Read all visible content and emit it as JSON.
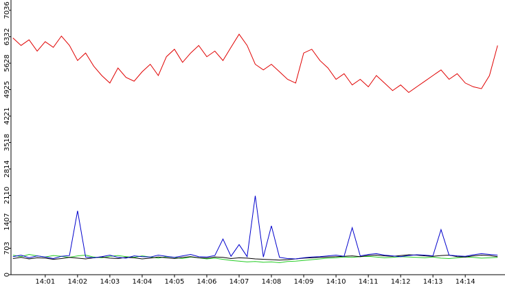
{
  "chart_data": {
    "type": "line",
    "x": [
      0,
      0.25,
      0.5,
      0.75,
      1,
      1.25,
      1.5,
      1.75,
      2,
      2.25,
      2.5,
      2.75,
      3,
      3.25,
      3.5,
      3.75,
      4,
      4.25,
      4.5,
      4.75,
      5,
      5.25,
      5.5,
      5.75,
      6,
      6.25,
      6.5,
      6.75,
      7,
      7.25,
      7.5,
      7.75,
      8,
      8.25,
      8.5,
      8.75,
      9,
      9.25,
      9.5,
      9.75,
      10,
      10.25,
      10.5,
      10.75,
      11,
      11.25,
      11.5,
      11.75,
      12,
      12.25,
      12.5,
      12.75,
      13,
      13.25,
      13.5,
      13.75,
      14,
      14.25,
      14.5,
      14.75,
      15
    ],
    "xlim": [
      -0.06,
      15.23
    ],
    "xticks": [
      {
        "value": 1,
        "label": "14:01"
      },
      {
        "value": 2,
        "label": "14:02"
      },
      {
        "value": 3,
        "label": "14:03"
      },
      {
        "value": 4,
        "label": "14:04"
      },
      {
        "value": 5,
        "label": "14:05"
      },
      {
        "value": 6,
        "label": "14:06"
      },
      {
        "value": 7,
        "label": "14:07"
      },
      {
        "value": 8,
        "label": "14:08"
      },
      {
        "value": 9,
        "label": "14:09"
      },
      {
        "value": 10,
        "label": "14:10"
      },
      {
        "value": 11,
        "label": "14:11"
      },
      {
        "value": 12,
        "label": "14:12"
      },
      {
        "value": 13,
        "label": "14:13"
      },
      {
        "value": 14,
        "label": "14:14"
      }
    ],
    "ylim": [
      0,
      7310
    ],
    "yticks": [
      0,
      703,
      1407,
      2110,
      2814,
      3518,
      4221,
      4925,
      5628,
      6332,
      7036
    ],
    "series": [
      {
        "color": "#e00000",
        "values": [
          6300,
          6100,
          6250,
          5950,
          6200,
          6050,
          6350,
          6100,
          5700,
          5900,
          5550,
          5300,
          5100,
          5500,
          5250,
          5150,
          5400,
          5600,
          5300,
          5800,
          6000,
          5650,
          5900,
          6100,
          5800,
          5950,
          5700,
          6050,
          6400,
          6100,
          5600,
          5450,
          5600,
          5400,
          5200,
          5100,
          5900,
          6000,
          5700,
          5500,
          5200,
          5350,
          5050,
          5200,
          5000,
          5300,
          5100,
          4900,
          5050,
          4850,
          5000,
          5150,
          5300,
          5450,
          5200,
          5350,
          5100,
          5000,
          4950,
          5300,
          6100
        ]
      },
      {
        "color": "#22cc22",
        "values": [
          520,
          480,
          540,
          500,
          470,
          510,
          490,
          460,
          500,
          520,
          470,
          450,
          490,
          510,
          480,
          460,
          500,
          470,
          440,
          480,
          460,
          430,
          470,
          450,
          420,
          440,
          410,
          380,
          360,
          340,
          350,
          330,
          340,
          320,
          350,
          360,
          380,
          400,
          420,
          440,
          450,
          470,
          460,
          480,
          490,
          470,
          450,
          460,
          480,
          470,
          460,
          450,
          470,
          440,
          430,
          450,
          470,
          460,
          440,
          450,
          460
        ]
      },
      {
        "color": "#000000",
        "values": [
          430,
          460,
          420,
          450,
          440,
          410,
          430,
          460,
          440,
          420,
          450,
          470,
          440,
          430,
          460,
          450,
          420,
          440,
          470,
          450,
          430,
          460,
          480,
          450,
          440,
          470,
          460,
          430,
          450,
          440,
          420,
          410,
          400,
          390,
          400,
          420,
          440,
          450,
          460,
          470,
          480,
          490,
          500,
          480,
          510,
          520,
          500,
          490,
          510,
          530,
          520,
          500,
          490,
          510,
          520,
          480,
          470,
          500,
          520,
          510,
          480
        ]
      },
      {
        "color": "#0000cc",
        "values": [
          480,
          520,
          450,
          500,
          470,
          430,
          490,
          510,
          1700,
          470,
          450,
          480,
          520,
          460,
          440,
          500,
          480,
          470,
          520,
          490,
          460,
          500,
          540,
          480,
          470,
          510,
          950,
          490,
          800,
          480,
          2100,
          470,
          1300,
          460,
          430,
          420,
          450,
          470,
          480,
          500,
          520,
          490,
          1250,
          500,
          540,
          560,
          520,
          500,
          480,
          510,
          530,
          520,
          500,
          1200,
          520,
          500,
          490,
          530,
          560,
          540,
          520
        ]
      }
    ]
  }
}
